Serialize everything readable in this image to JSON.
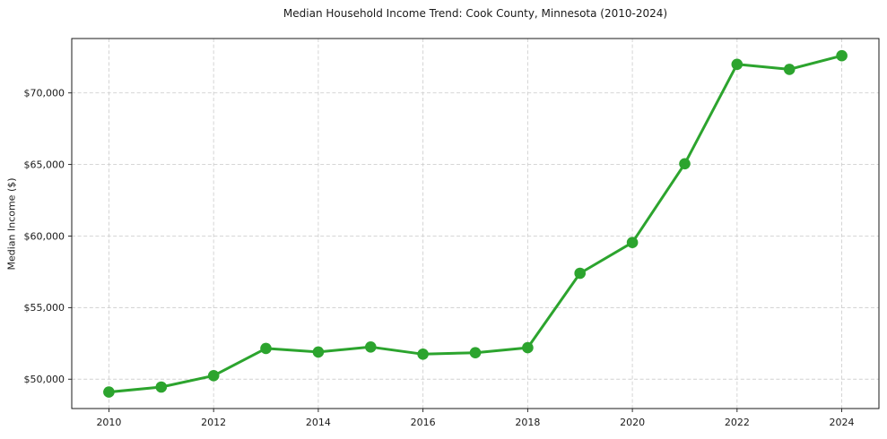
{
  "chart_data": {
    "type": "line",
    "title": "Median Household Income Trend: Cook County, Minnesota (2010-2024)",
    "xlabel": "",
    "ylabel": "Median Income ($)",
    "series_name": "Median household income",
    "x": [
      2010,
      2011,
      2012,
      2013,
      2014,
      2015,
      2016,
      2017,
      2018,
      2019,
      2020,
      2021,
      2022,
      2023,
      2024
    ],
    "values": [
      49100,
      49450,
      50250,
      52150,
      51900,
      52250,
      51750,
      51850,
      52200,
      57400,
      59550,
      65050,
      72000,
      71650,
      72600
    ],
    "xlim": [
      2009.29,
      2024.71
    ],
    "ylim": [
      47950,
      73800
    ],
    "xticks": [
      2010,
      2012,
      2014,
      2016,
      2018,
      2020,
      2022,
      2024
    ],
    "yticks": [
      50000,
      55000,
      60000,
      65000,
      70000
    ],
    "ytick_labels": [
      "$50,000",
      "$55,000",
      "$60,000",
      "$65,000",
      "$70,000"
    ],
    "grid": true,
    "legend": false,
    "line_color": "#2ca42e",
    "grid_color": "#d0d0d0",
    "spine_color": "#1a1a1a",
    "marker": "circle",
    "background": "#ffffff"
  }
}
